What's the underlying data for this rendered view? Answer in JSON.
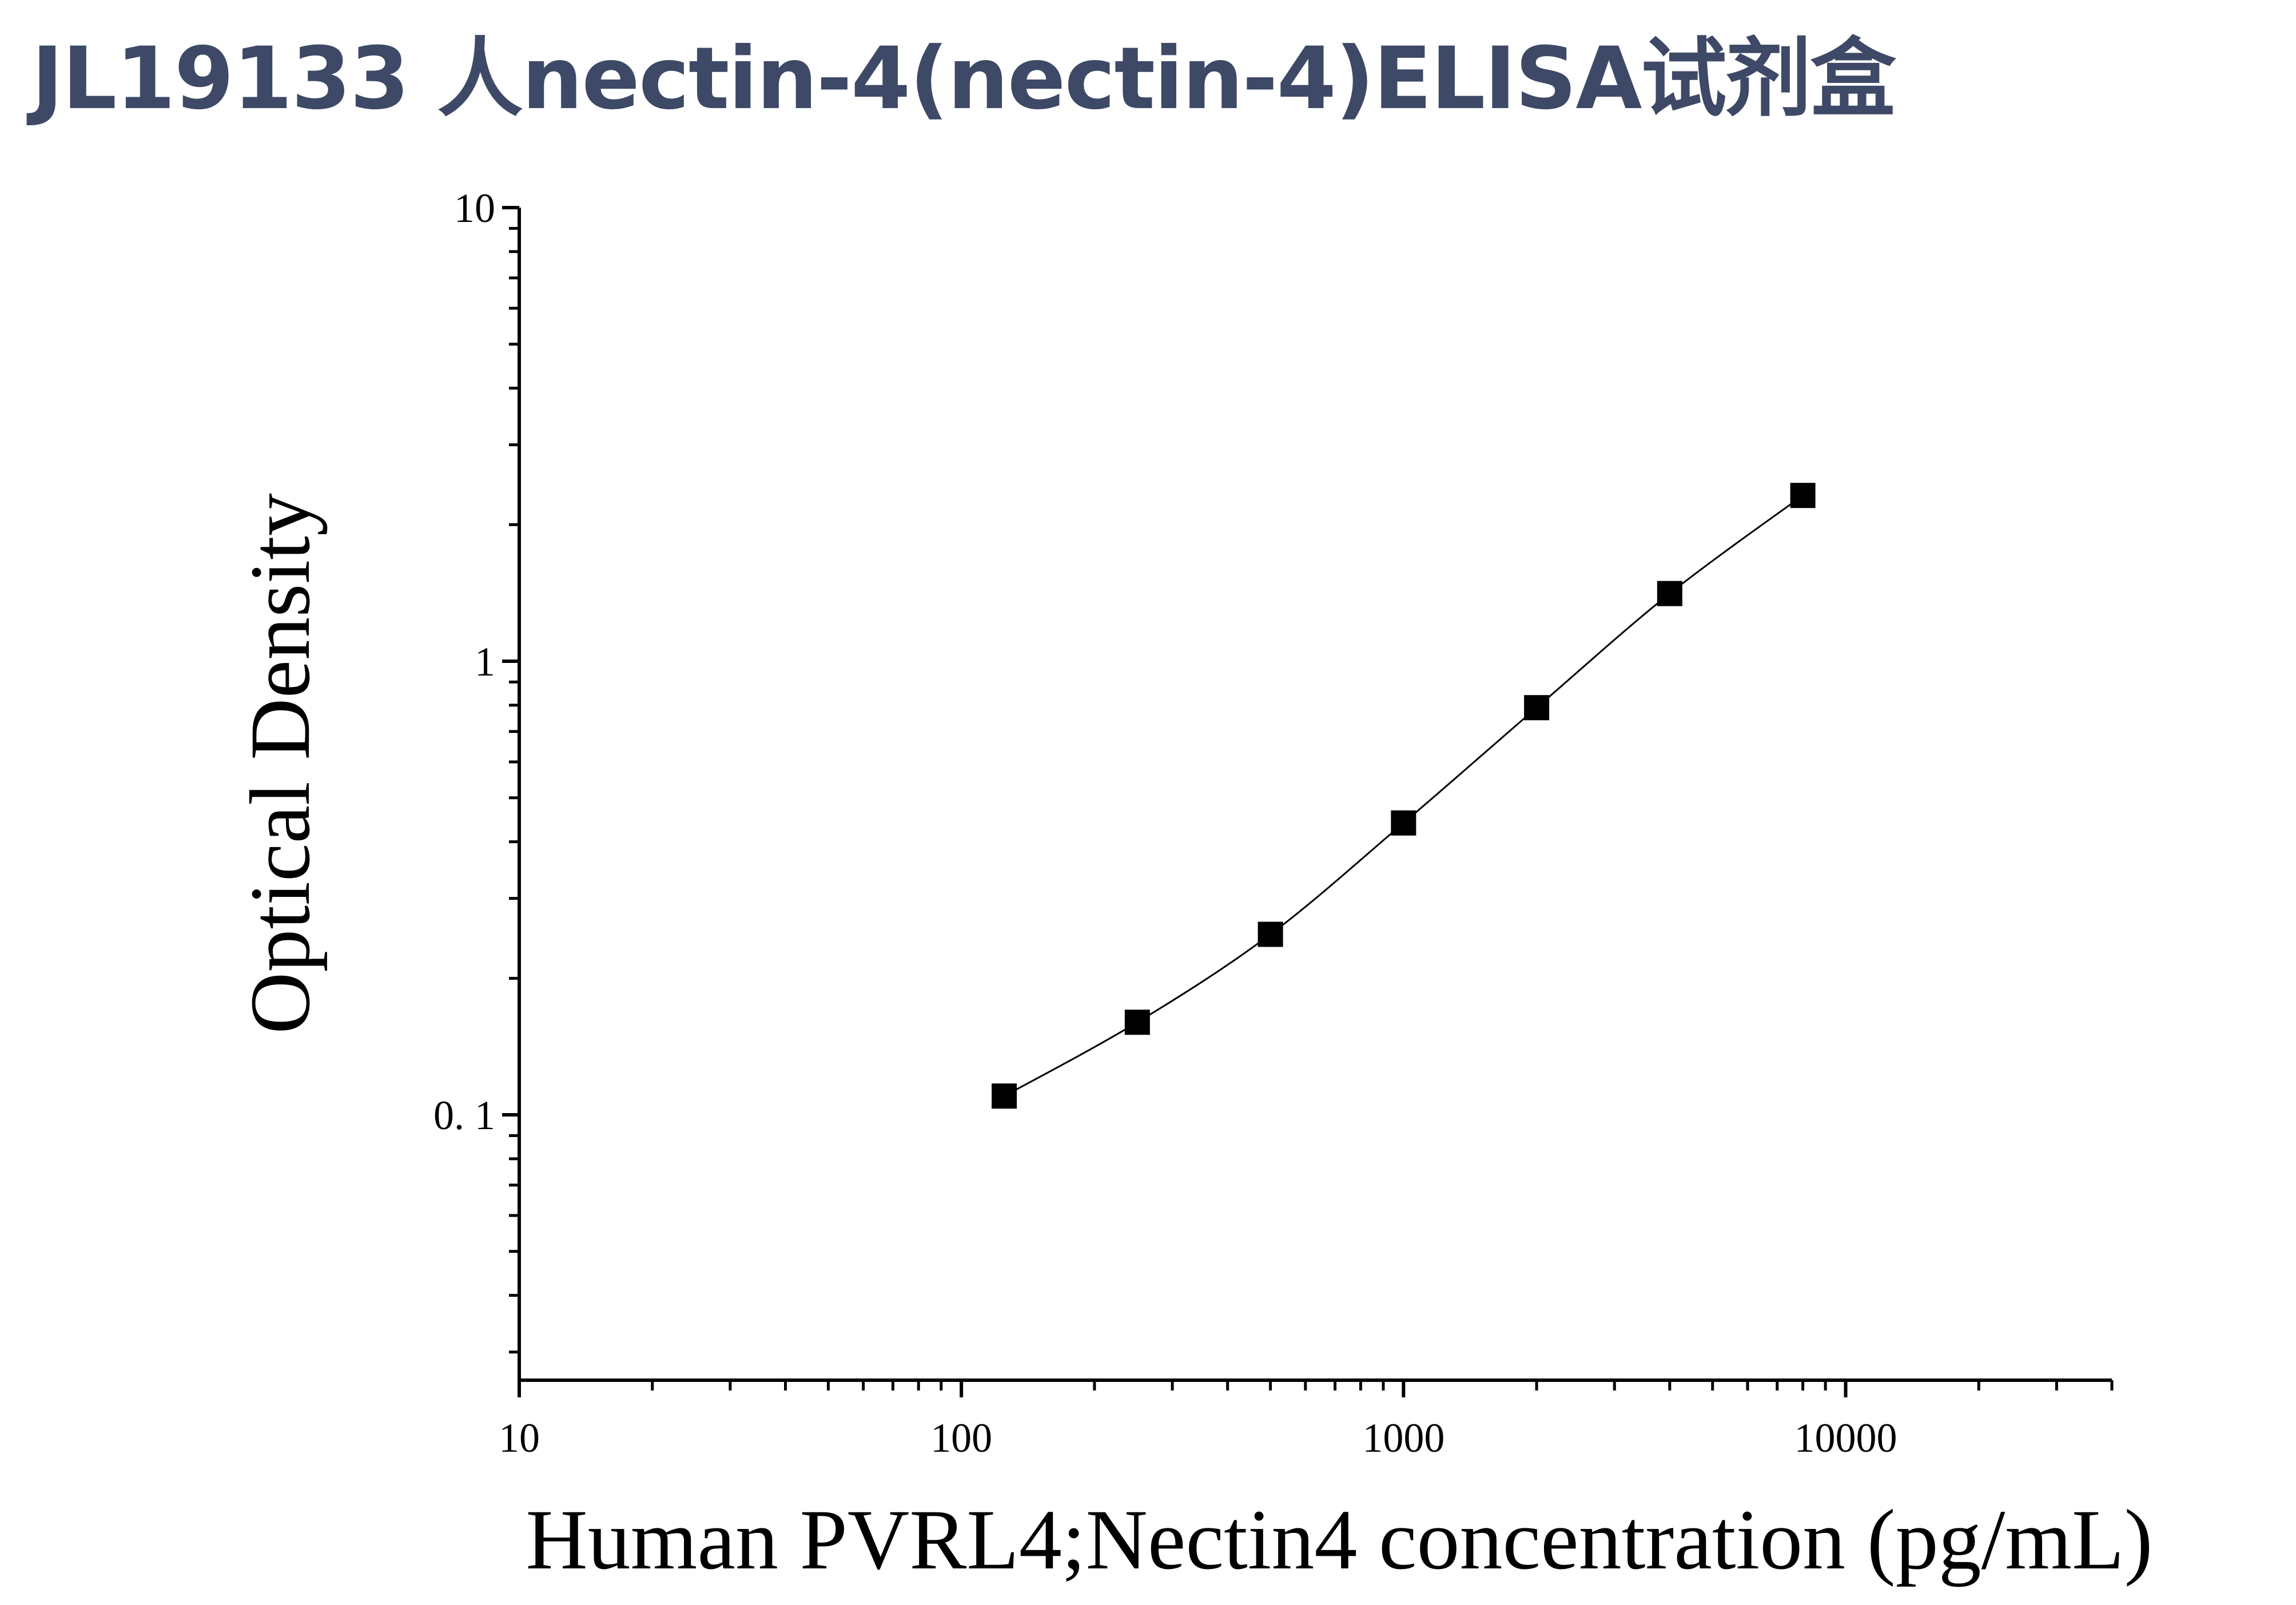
{
  "page": {
    "title": "JL19133 人nectin-4(nectin-4)ELISA试剂盒",
    "title_color": "#3d4966"
  },
  "chart_data": {
    "type": "scatter",
    "x_scale": "log",
    "y_scale": "log",
    "xlabel": "Human PVRL4;Nectin4 concentration (pg/mL)",
    "ylabel": "Optical Density",
    "xlim": [
      10,
      40000
    ],
    "ylim": [
      0.026,
      10
    ],
    "x_ticks": [
      {
        "value": 10,
        "label": "10"
      },
      {
        "value": 100,
        "label": "100"
      },
      {
        "value": 1000,
        "label": "1000"
      },
      {
        "value": 10000,
        "label": "10000"
      }
    ],
    "y_ticks": [
      {
        "value": 0.1,
        "label": "0. 1"
      },
      {
        "value": 1,
        "label": "1"
      },
      {
        "value": 10,
        "label": "10"
      }
    ],
    "grid": false,
    "legend": "none",
    "series": [
      {
        "marker": "square",
        "color": "#000000",
        "fitted_curve": true,
        "x": [
          125,
          250,
          500,
          1000,
          2000,
          4000,
          8000
        ],
        "y": [
          0.11,
          0.16,
          0.25,
          0.44,
          0.79,
          1.41,
          2.32
        ]
      }
    ]
  }
}
